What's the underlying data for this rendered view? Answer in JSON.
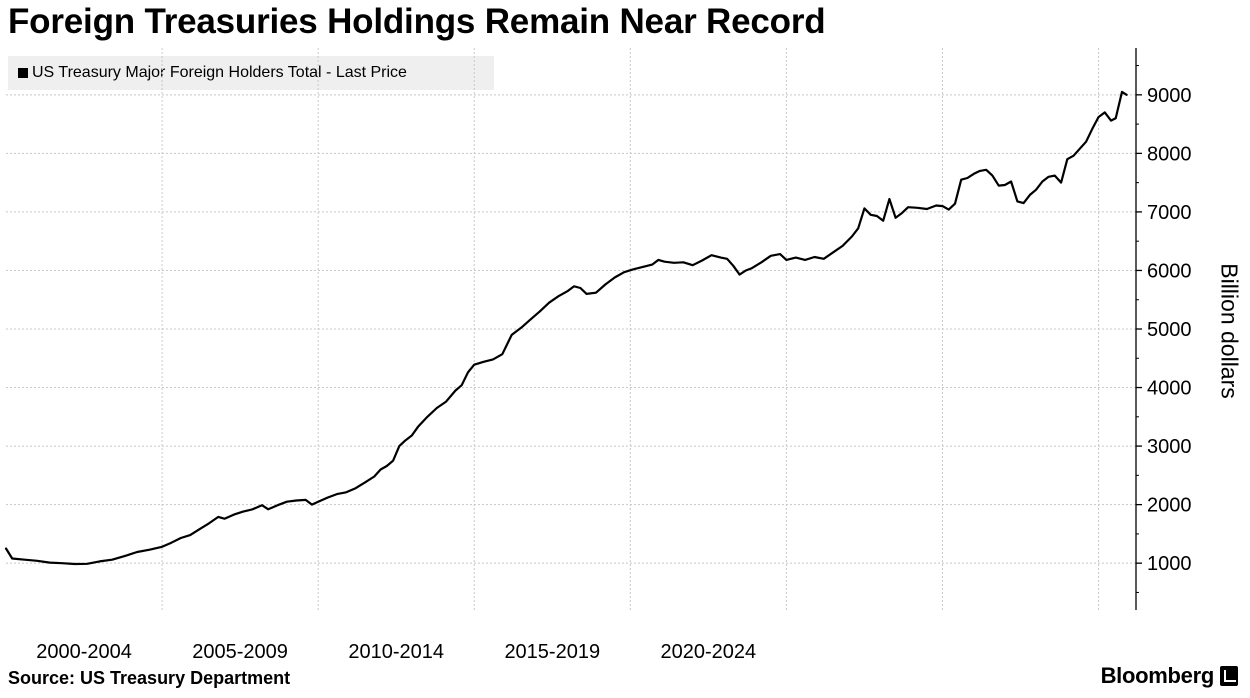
{
  "title": "Foreign Treasuries Holdings Remain Near Record",
  "source": "Source: US Treasury Department",
  "brand": "Bloomberg",
  "chart_data": {
    "type": "line",
    "title": "Foreign Treasuries Holdings Remain Near Record",
    "ylabel": "Billion dollars",
    "xlabel": "",
    "ylim": [
      200,
      9800
    ],
    "yticks": [
      1000,
      2000,
      3000,
      4000,
      5000,
      6000,
      7000,
      8000,
      9000
    ],
    "x_categories": [
      "2000-2004",
      "2005-2009",
      "2010-2014",
      "2015-2019",
      "2020-2024"
    ],
    "grid": true,
    "legend_position": "top-left",
    "series": [
      {
        "name": "US Treasury Major Foreign Holders Total - Last Price",
        "color": "#000000",
        "points": [
          [
            2000.0,
            1250
          ],
          [
            2000.2,
            1080
          ],
          [
            2000.6,
            1060
          ],
          [
            2001.0,
            1040
          ],
          [
            2001.4,
            1010
          ],
          [
            2001.8,
            1000
          ],
          [
            2002.2,
            985
          ],
          [
            2002.6,
            990
          ],
          [
            2003.0,
            1030
          ],
          [
            2003.4,
            1060
          ],
          [
            2003.8,
            1120
          ],
          [
            2004.2,
            1190
          ],
          [
            2004.6,
            1230
          ],
          [
            2005.0,
            1280
          ],
          [
            2005.3,
            1350
          ],
          [
            2005.6,
            1430
          ],
          [
            2005.9,
            1480
          ],
          [
            2006.2,
            1580
          ],
          [
            2006.5,
            1680
          ],
          [
            2006.8,
            1790
          ],
          [
            2007.0,
            1760
          ],
          [
            2007.3,
            1830
          ],
          [
            2007.6,
            1880
          ],
          [
            2007.9,
            1920
          ],
          [
            2008.2,
            1990
          ],
          [
            2008.4,
            1920
          ],
          [
            2008.7,
            1990
          ],
          [
            2009.0,
            2050
          ],
          [
            2009.3,
            2070
          ],
          [
            2009.6,
            2080
          ],
          [
            2009.8,
            2000
          ],
          [
            2010.0,
            2050
          ],
          [
            2010.3,
            2120
          ],
          [
            2010.6,
            2180
          ],
          [
            2010.9,
            2210
          ],
          [
            2011.2,
            2280
          ],
          [
            2011.5,
            2380
          ],
          [
            2011.8,
            2480
          ],
          [
            2012.0,
            2600
          ],
          [
            2012.2,
            2660
          ],
          [
            2012.4,
            2750
          ],
          [
            2012.6,
            3000
          ],
          [
            2012.8,
            3100
          ],
          [
            2013.0,
            3180
          ],
          [
            2013.2,
            3330
          ],
          [
            2013.5,
            3500
          ],
          [
            2013.8,
            3650
          ],
          [
            2014.1,
            3760
          ],
          [
            2014.4,
            3950
          ],
          [
            2014.6,
            4040
          ],
          [
            2014.8,
            4260
          ],
          [
            2015.0,
            4390
          ],
          [
            2015.3,
            4440
          ],
          [
            2015.6,
            4480
          ],
          [
            2015.9,
            4570
          ],
          [
            2016.2,
            4900
          ],
          [
            2016.5,
            5020
          ],
          [
            2016.8,
            5160
          ],
          [
            2017.1,
            5300
          ],
          [
            2017.4,
            5450
          ],
          [
            2017.7,
            5560
          ],
          [
            2018.0,
            5650
          ],
          [
            2018.2,
            5730
          ],
          [
            2018.4,
            5700
          ],
          [
            2018.6,
            5600
          ],
          [
            2018.9,
            5620
          ],
          [
            2019.2,
            5760
          ],
          [
            2019.5,
            5880
          ],
          [
            2019.8,
            5970
          ],
          [
            2020.1,
            6020
          ],
          [
            2020.4,
            6060
          ],
          [
            2020.7,
            6100
          ],
          [
            2020.9,
            6180
          ],
          [
            2021.1,
            6150
          ],
          [
            2021.4,
            6130
          ],
          [
            2021.7,
            6140
          ],
          [
            2022.0,
            6090
          ],
          [
            2022.3,
            6170
          ],
          [
            2022.6,
            6260
          ],
          [
            2022.9,
            6220
          ],
          [
            2023.1,
            6200
          ],
          [
            2023.3,
            6080
          ],
          [
            2023.5,
            5930
          ],
          [
            2023.7,
            6000
          ],
          [
            2023.9,
            6040
          ],
          [
            2024.2,
            6140
          ],
          [
            2024.5,
            6250
          ],
          [
            2024.8,
            6280
          ],
          [
            2025.0,
            6180
          ],
          [
            2025.3,
            6220
          ],
          [
            2025.6,
            6180
          ],
          [
            2025.9,
            6230
          ],
          [
            2026.2,
            6200
          ],
          [
            2026.5,
            6310
          ],
          [
            2026.8,
            6420
          ],
          [
            2027.1,
            6580
          ],
          [
            2027.3,
            6720
          ],
          [
            2027.5,
            7060
          ],
          [
            2027.7,
            6950
          ],
          [
            2027.9,
            6930
          ],
          [
            2028.1,
            6850
          ],
          [
            2028.3,
            7220
          ],
          [
            2028.5,
            6900
          ],
          [
            2028.7,
            6980
          ],
          [
            2028.9,
            7080
          ],
          [
            2029.2,
            7070
          ],
          [
            2029.5,
            7050
          ],
          [
            2029.8,
            7110
          ],
          [
            2030.0,
            7100
          ],
          [
            2030.2,
            7040
          ],
          [
            2030.4,
            7140
          ],
          [
            2030.6,
            7550
          ],
          [
            2030.8,
            7580
          ],
          [
            2031.0,
            7650
          ],
          [
            2031.2,
            7700
          ],
          [
            2031.4,
            7720
          ],
          [
            2031.6,
            7620
          ],
          [
            2031.8,
            7450
          ],
          [
            2032.0,
            7460
          ],
          [
            2032.2,
            7520
          ],
          [
            2032.4,
            7180
          ],
          [
            2032.6,
            7150
          ],
          [
            2032.8,
            7290
          ],
          [
            2033.0,
            7380
          ],
          [
            2033.2,
            7520
          ],
          [
            2033.4,
            7600
          ],
          [
            2033.6,
            7620
          ],
          [
            2033.8,
            7500
          ],
          [
            2034.0,
            7900
          ],
          [
            2034.2,
            7960
          ],
          [
            2034.4,
            8080
          ],
          [
            2034.6,
            8200
          ],
          [
            2034.8,
            8420
          ],
          [
            2035.0,
            8620
          ],
          [
            2035.2,
            8700
          ],
          [
            2035.4,
            8560
          ],
          [
            2035.55,
            8600
          ],
          [
            2035.75,
            9050
          ],
          [
            2035.9,
            9000
          ]
        ]
      }
    ]
  }
}
